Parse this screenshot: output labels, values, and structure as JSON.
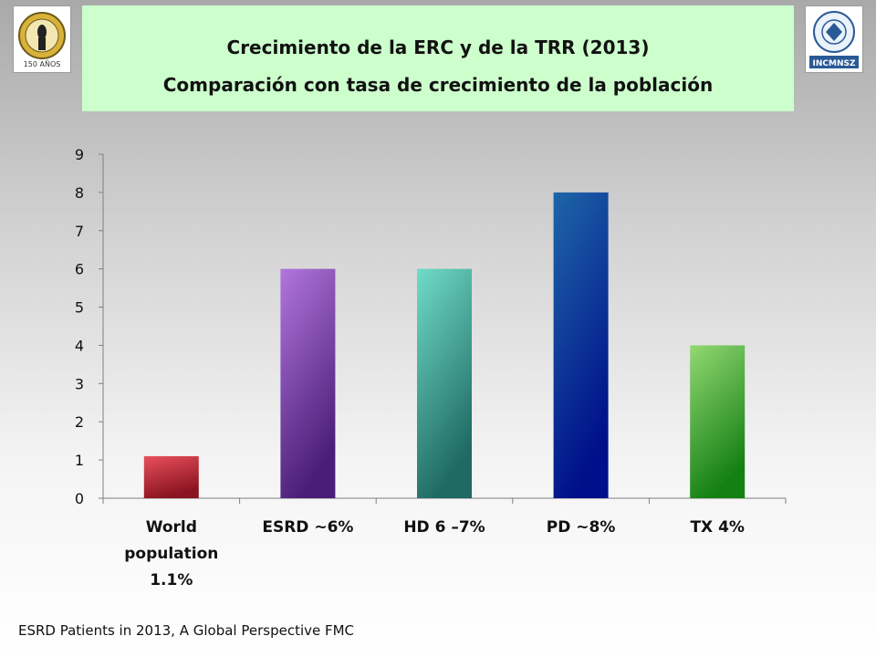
{
  "header": {
    "title": "Crecimiento de la ERC y de la TRR (2013)",
    "subtitle": "Comparación con tasa de crecimiento de la población",
    "left_logo_text": "150 AÑOS",
    "right_logo_text": "INCMNSZ"
  },
  "chart_data": {
    "type": "bar",
    "categories": [
      [
        "World",
        "population",
        "1.1%"
      ],
      [
        "ESRD ~6%"
      ],
      [
        "HD 6 –7%"
      ],
      [
        "PD ~8%"
      ],
      [
        "TX 4%"
      ]
    ],
    "values": [
      1.1,
      6,
      6,
      8,
      4
    ],
    "colors": [
      [
        "#e8505c",
        "#8a1420"
      ],
      [
        "#b276dc",
        "#4a1e78"
      ],
      [
        "#70dcc8",
        "#1f6a63"
      ],
      [
        "#1e66a8",
        "#00108a"
      ],
      [
        "#92d872",
        "#148014"
      ]
    ],
    "ylim": [
      0,
      9
    ],
    "yticks": [
      0,
      1,
      2,
      3,
      4,
      5,
      6,
      7,
      8,
      9
    ],
    "grid": false,
    "legend": "none"
  },
  "footer": {
    "source": "ESRD Patients in 2013, A Global Perspective FMC"
  }
}
